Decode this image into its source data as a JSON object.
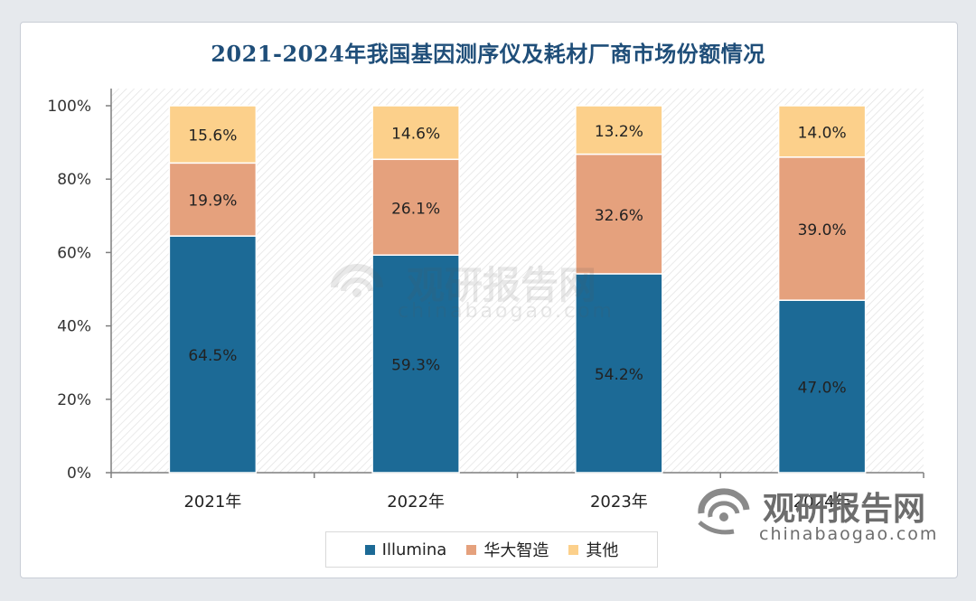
{
  "chart_data": {
    "type": "bar",
    "stacked": true,
    "title": "2021-2024年我国基因测序仪及耗材厂商市场份额情况",
    "categories": [
      "2021年",
      "2022年",
      "2023年",
      "2024年"
    ],
    "series": [
      {
        "name": "Illumina",
        "color": "#1c6a96",
        "values": [
          64.5,
          59.3,
          54.2,
          47.0
        ],
        "labels": [
          "64.5%",
          "59.3%",
          "54.2%",
          "47.0%"
        ]
      },
      {
        "name": "华大智造",
        "color": "#e5a17d",
        "values": [
          19.9,
          26.1,
          32.6,
          39.0
        ],
        "labels": [
          "19.9%",
          "26.1%",
          "32.6%",
          "39.0%"
        ]
      },
      {
        "name": "其他",
        "color": "#fcd08b",
        "values": [
          15.6,
          14.6,
          13.2,
          14.0
        ],
        "labels": [
          "15.6%",
          "14.6%",
          "13.2%",
          "14.0%"
        ]
      }
    ],
    "ylim": [
      0,
      100
    ],
    "yticks": [
      0,
      20,
      40,
      60,
      80,
      100
    ],
    "ytick_labels": [
      "0%",
      "20%",
      "40%",
      "60%",
      "80%",
      "100%"
    ],
    "xlabel": "",
    "ylabel": "",
    "legend_position": "bottom"
  },
  "watermark": {
    "name": "观研报告网",
    "domain": "chinabaogao.com"
  },
  "colors": {
    "title": "#1f4e79",
    "axis": "#595959",
    "background": "#e6e9ed"
  }
}
